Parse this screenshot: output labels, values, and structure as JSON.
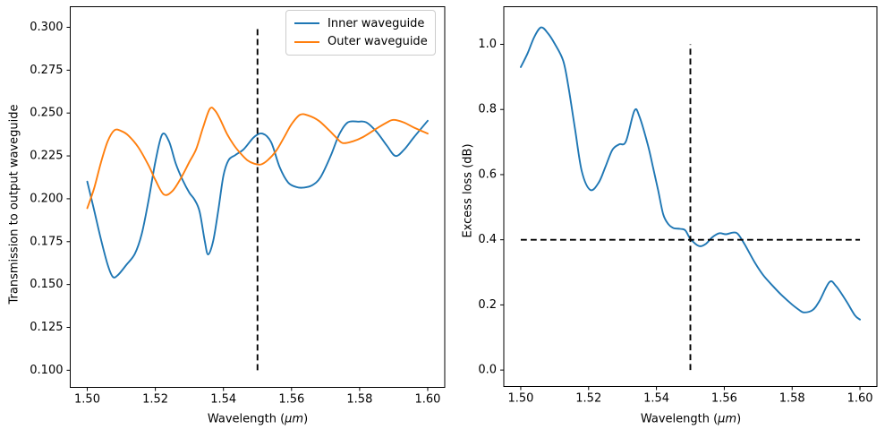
{
  "figure": {
    "background": "#ffffff",
    "text_color": "#000000",
    "spine_color": "#000000",
    "dashed_line_color": "#000000"
  },
  "chart_data": [
    {
      "type": "line",
      "title": "",
      "xlabel": "Wavelength (μm)",
      "xlabel_parts": {
        "pre": "Wavelength (",
        "italic": "μm",
        "post": ")"
      },
      "ylabel": "Transmission to output waveguide",
      "xlim": [
        1.495,
        1.605
      ],
      "ylim": [
        0.09,
        0.312
      ],
      "grid": false,
      "legend_position": "upper right",
      "xticks": {
        "values": [
          1.5,
          1.52,
          1.54,
          1.56,
          1.58,
          1.6
        ],
        "labels": [
          "1.50",
          "1.52",
          "1.54",
          "1.56",
          "1.58",
          "1.60"
        ]
      },
      "yticks": {
        "values": [
          0.1,
          0.125,
          0.15,
          0.175,
          0.2,
          0.225,
          0.25,
          0.275,
          0.3
        ],
        "labels": [
          "0.100",
          "0.125",
          "0.150",
          "0.175",
          "0.200",
          "0.225",
          "0.250",
          "0.275",
          "0.300"
        ]
      },
      "series": [
        {
          "name": "Inner waveguide",
          "color": "#1f77b4",
          "points": [
            [
              1.5,
              0.21
            ],
            [
              1.502,
              0.1935
            ],
            [
              1.504,
              0.1765
            ],
            [
              1.506,
              0.1615
            ],
            [
              1.5075,
              0.1545
            ],
            [
              1.509,
              0.1555
            ],
            [
              1.5115,
              0.1615
            ],
            [
              1.514,
              0.168
            ],
            [
              1.516,
              0.1795
            ],
            [
              1.518,
              0.199
            ],
            [
              1.52,
              0.2215
            ],
            [
              1.522,
              0.2375
            ],
            [
              1.524,
              0.2335
            ],
            [
              1.526,
              0.2205
            ],
            [
              1.528,
              0.211
            ],
            [
              1.53,
              0.2035
            ],
            [
              1.5315,
              0.1995
            ],
            [
              1.533,
              0.1925
            ],
            [
              1.5345,
              0.1755
            ],
            [
              1.5355,
              0.1675
            ],
            [
              1.537,
              0.1755
            ],
            [
              1.5385,
              0.1935
            ],
            [
              1.54,
              0.2135
            ],
            [
              1.5415,
              0.2225
            ],
            [
              1.5435,
              0.2255
            ],
            [
              1.546,
              0.229
            ],
            [
              1.549,
              0.236
            ],
            [
              1.5515,
              0.238
            ],
            [
              1.554,
              0.233
            ],
            [
              1.5565,
              0.2185
            ],
            [
              1.559,
              0.2095
            ],
            [
              1.5615,
              0.2068
            ],
            [
              1.5635,
              0.2065
            ],
            [
              1.566,
              0.2078
            ],
            [
              1.5685,
              0.2125
            ],
            [
              1.5715,
              0.225
            ],
            [
              1.574,
              0.2375
            ],
            [
              1.5765,
              0.2445
            ],
            [
              1.5795,
              0.245
            ],
            [
              1.582,
              0.2445
            ],
            [
              1.585,
              0.239
            ],
            [
              1.588,
              0.231
            ],
            [
              1.5905,
              0.225
            ],
            [
              1.593,
              0.2285
            ],
            [
              1.596,
              0.236
            ],
            [
              1.6,
              0.2455
            ]
          ]
        },
        {
          "name": "Outer waveguide",
          "color": "#ff7f0e",
          "points": [
            [
              1.5,
              0.1945
            ],
            [
              1.502,
              0.206
            ],
            [
              1.504,
              0.221
            ],
            [
              1.506,
              0.2335
            ],
            [
              1.508,
              0.24
            ],
            [
              1.51,
              0.2395
            ],
            [
              1.512,
              0.237
            ],
            [
              1.515,
              0.23
            ],
            [
              1.518,
              0.2195
            ],
            [
              1.52,
              0.211
            ],
            [
              1.5225,
              0.2025
            ],
            [
              1.525,
              0.2045
            ],
            [
              1.5275,
              0.212
            ],
            [
              1.53,
              0.2215
            ],
            [
              1.532,
              0.229
            ],
            [
              1.534,
              0.2415
            ],
            [
              1.536,
              0.2525
            ],
            [
              1.5375,
              0.2515
            ],
            [
              1.539,
              0.2465
            ],
            [
              1.541,
              0.238
            ],
            [
              1.543,
              0.2315
            ],
            [
              1.545,
              0.2265
            ],
            [
              1.547,
              0.2225
            ],
            [
              1.549,
              0.2205
            ],
            [
              1.551,
              0.22
            ],
            [
              1.553,
              0.2225
            ],
            [
              1.5555,
              0.228
            ],
            [
              1.558,
              0.2365
            ],
            [
              1.56,
              0.2435
            ],
            [
              1.5625,
              0.249
            ],
            [
              1.565,
              0.2485
            ],
            [
              1.568,
              0.2455
            ],
            [
              1.571,
              0.24
            ],
            [
              1.573,
              0.236
            ],
            [
              1.575,
              0.2325
            ],
            [
              1.578,
              0.2335
            ],
            [
              1.581,
              0.236
            ],
            [
              1.585,
              0.241
            ],
            [
              1.588,
              0.2445
            ],
            [
              1.59,
              0.246
            ],
            [
              1.593,
              0.2445
            ],
            [
              1.596,
              0.2415
            ],
            [
              1.6,
              0.238
            ]
          ]
        }
      ],
      "annotations": {
        "vlines": [
          {
            "x": 1.55,
            "y0": 0.1,
            "y1": 0.3,
            "style": "dashed",
            "color": "#000000"
          }
        ],
        "hlines": []
      }
    },
    {
      "type": "line",
      "title": "",
      "xlabel": "Wavelength (μm)",
      "xlabel_parts": {
        "pre": "Wavelength (",
        "italic": "μm",
        "post": ")"
      },
      "ylabel": "Excess loss (dB)",
      "xlim": [
        1.495,
        1.605
      ],
      "ylim": [
        -0.0505,
        1.1155
      ],
      "grid": false,
      "legend_position": "none",
      "xticks": {
        "values": [
          1.5,
          1.52,
          1.54,
          1.56,
          1.58,
          1.6
        ],
        "labels": [
          "1.50",
          "1.52",
          "1.54",
          "1.56",
          "1.58",
          "1.60"
        ]
      },
      "yticks": {
        "values": [
          0.0,
          0.2,
          0.4,
          0.6,
          0.8,
          1.0
        ],
        "labels": [
          "0.0",
          "0.2",
          "0.4",
          "0.6",
          "0.8",
          "1.0"
        ]
      },
      "series": [
        {
          "name": "Excess loss",
          "color": "#1f77b4",
          "points": [
            [
              1.5,
              0.93
            ],
            [
              1.502,
              0.972
            ],
            [
              1.504,
              1.023
            ],
            [
              1.506,
              1.052
            ],
            [
              1.508,
              1.034
            ],
            [
              1.51,
              1.002
            ],
            [
              1.5125,
              0.95
            ],
            [
              1.514,
              0.873
            ],
            [
              1.516,
              0.74
            ],
            [
              1.518,
              0.61
            ],
            [
              1.5205,
              0.553
            ],
            [
              1.523,
              0.576
            ],
            [
              1.525,
              0.625
            ],
            [
              1.527,
              0.676
            ],
            [
              1.529,
              0.693
            ],
            [
              1.531,
              0.702
            ],
            [
              1.5335,
              0.796
            ],
            [
              1.535,
              0.778
            ],
            [
              1.5375,
              0.69
            ],
            [
              1.539,
              0.622
            ],
            [
              1.5405,
              0.552
            ],
            [
              1.542,
              0.478
            ],
            [
              1.5435,
              0.448
            ],
            [
              1.545,
              0.436
            ],
            [
              1.547,
              0.4335
            ],
            [
              1.5485,
              0.429
            ],
            [
              1.55,
              0.403
            ],
            [
              1.5525,
              0.381
            ],
            [
              1.5545,
              0.387
            ],
            [
              1.5565,
              0.408
            ],
            [
              1.5585,
              0.42
            ],
            [
              1.5605,
              0.417
            ],
            [
              1.5625,
              0.422
            ],
            [
              1.564,
              0.418
            ],
            [
              1.566,
              0.386
            ],
            [
              1.569,
              0.33
            ],
            [
              1.5715,
              0.291
            ],
            [
              1.5745,
              0.256
            ],
            [
              1.577,
              0.229
            ],
            [
              1.58,
              0.201
            ],
            [
              1.582,
              0.185
            ],
            [
              1.5835,
              0.177
            ],
            [
              1.586,
              0.184
            ],
            [
              1.588,
              0.211
            ],
            [
              1.591,
              0.27
            ],
            [
              1.593,
              0.257
            ],
            [
              1.596,
              0.211
            ],
            [
              1.5985,
              0.168
            ],
            [
              1.6,
              0.155
            ]
          ]
        }
      ],
      "annotations": {
        "vlines": [
          {
            "x": 1.55,
            "y0": 0.0,
            "y1": 1.0,
            "style": "dashed",
            "color": "#000000"
          }
        ],
        "hlines": [
          {
            "y": 0.4,
            "x0": 1.5,
            "x1": 1.6,
            "style": "dashed",
            "color": "#000000"
          }
        ]
      }
    }
  ]
}
